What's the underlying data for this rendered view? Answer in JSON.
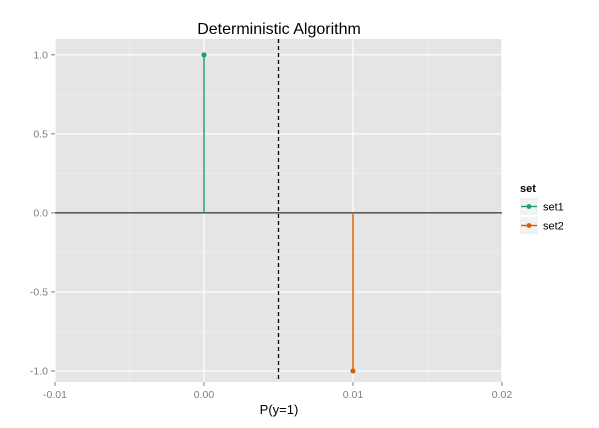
{
  "chart_data": {
    "type": "lollipop",
    "title": "Deterministic Algorithm",
    "xlabel": "P(y=1)",
    "ylabel": "",
    "xlim": [
      -0.01,
      0.02
    ],
    "ylim": [
      -1.07,
      1.1
    ],
    "x_ticks": [
      -0.01,
      0.0,
      0.01,
      0.02
    ],
    "x_tick_labels": [
      "-0.01",
      "0.00",
      "0.01",
      "0.02"
    ],
    "y_ticks": [
      1.0,
      0.5,
      0.0,
      -0.5,
      -1.0
    ],
    "y_tick_labels": [
      "1.0",
      "0.5",
      "0.0",
      "-0.5",
      "-1.0"
    ],
    "grid": true,
    "baseline_y": 0,
    "vline": {
      "x": 0.005,
      "style": "dashed"
    },
    "legend": {
      "title": "set",
      "position": "right"
    },
    "series": [
      {
        "name": "set1",
        "color": "#1b9e77",
        "x": [
          0.0
        ],
        "y": [
          1.0
        ]
      },
      {
        "name": "set2",
        "color": "#d95f02",
        "x": [
          0.01
        ],
        "y": [
          -1.0
        ]
      }
    ],
    "colors": {
      "panel": "#e5e5e5",
      "grid_major": "#ffffff",
      "grid_minor": "#f2f2f2"
    }
  }
}
